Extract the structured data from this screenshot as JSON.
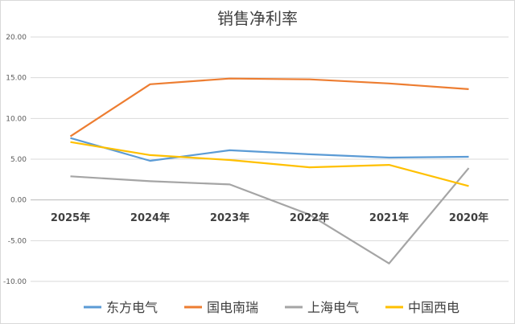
{
  "chart_data": {
    "type": "line",
    "title": "销售净利率",
    "categories": [
      "2025年",
      "2024年",
      "2023年",
      "2022年",
      "2021年",
      "2020年"
    ],
    "ylim": [
      -10,
      20
    ],
    "yticks": [
      20,
      15,
      10,
      5,
      0,
      -5,
      -10
    ],
    "ytick_labels": [
      "20.00",
      "15.00",
      "10.00",
      "5.00",
      "0.00",
      "-5.00",
      "-10.00"
    ],
    "grid": true,
    "legend_position": "bottom",
    "series": [
      {
        "name": "东方电气",
        "color": "#5b9bd5",
        "values": [
          7.6,
          4.8,
          6.1,
          5.6,
          5.2,
          5.3
        ]
      },
      {
        "name": "国电南瑞",
        "color": "#ed7d31",
        "values": [
          7.8,
          14.2,
          14.9,
          14.8,
          14.3,
          13.6
        ]
      },
      {
        "name": "上海电气",
        "color": "#a5a5a5",
        "values": [
          2.9,
          2.3,
          1.9,
          -1.8,
          -7.8,
          3.9
        ]
      },
      {
        "name": "中国西电",
        "color": "#ffc000",
        "values": [
          7.1,
          5.5,
          4.9,
          4.0,
          4.3,
          1.7
        ]
      }
    ]
  }
}
